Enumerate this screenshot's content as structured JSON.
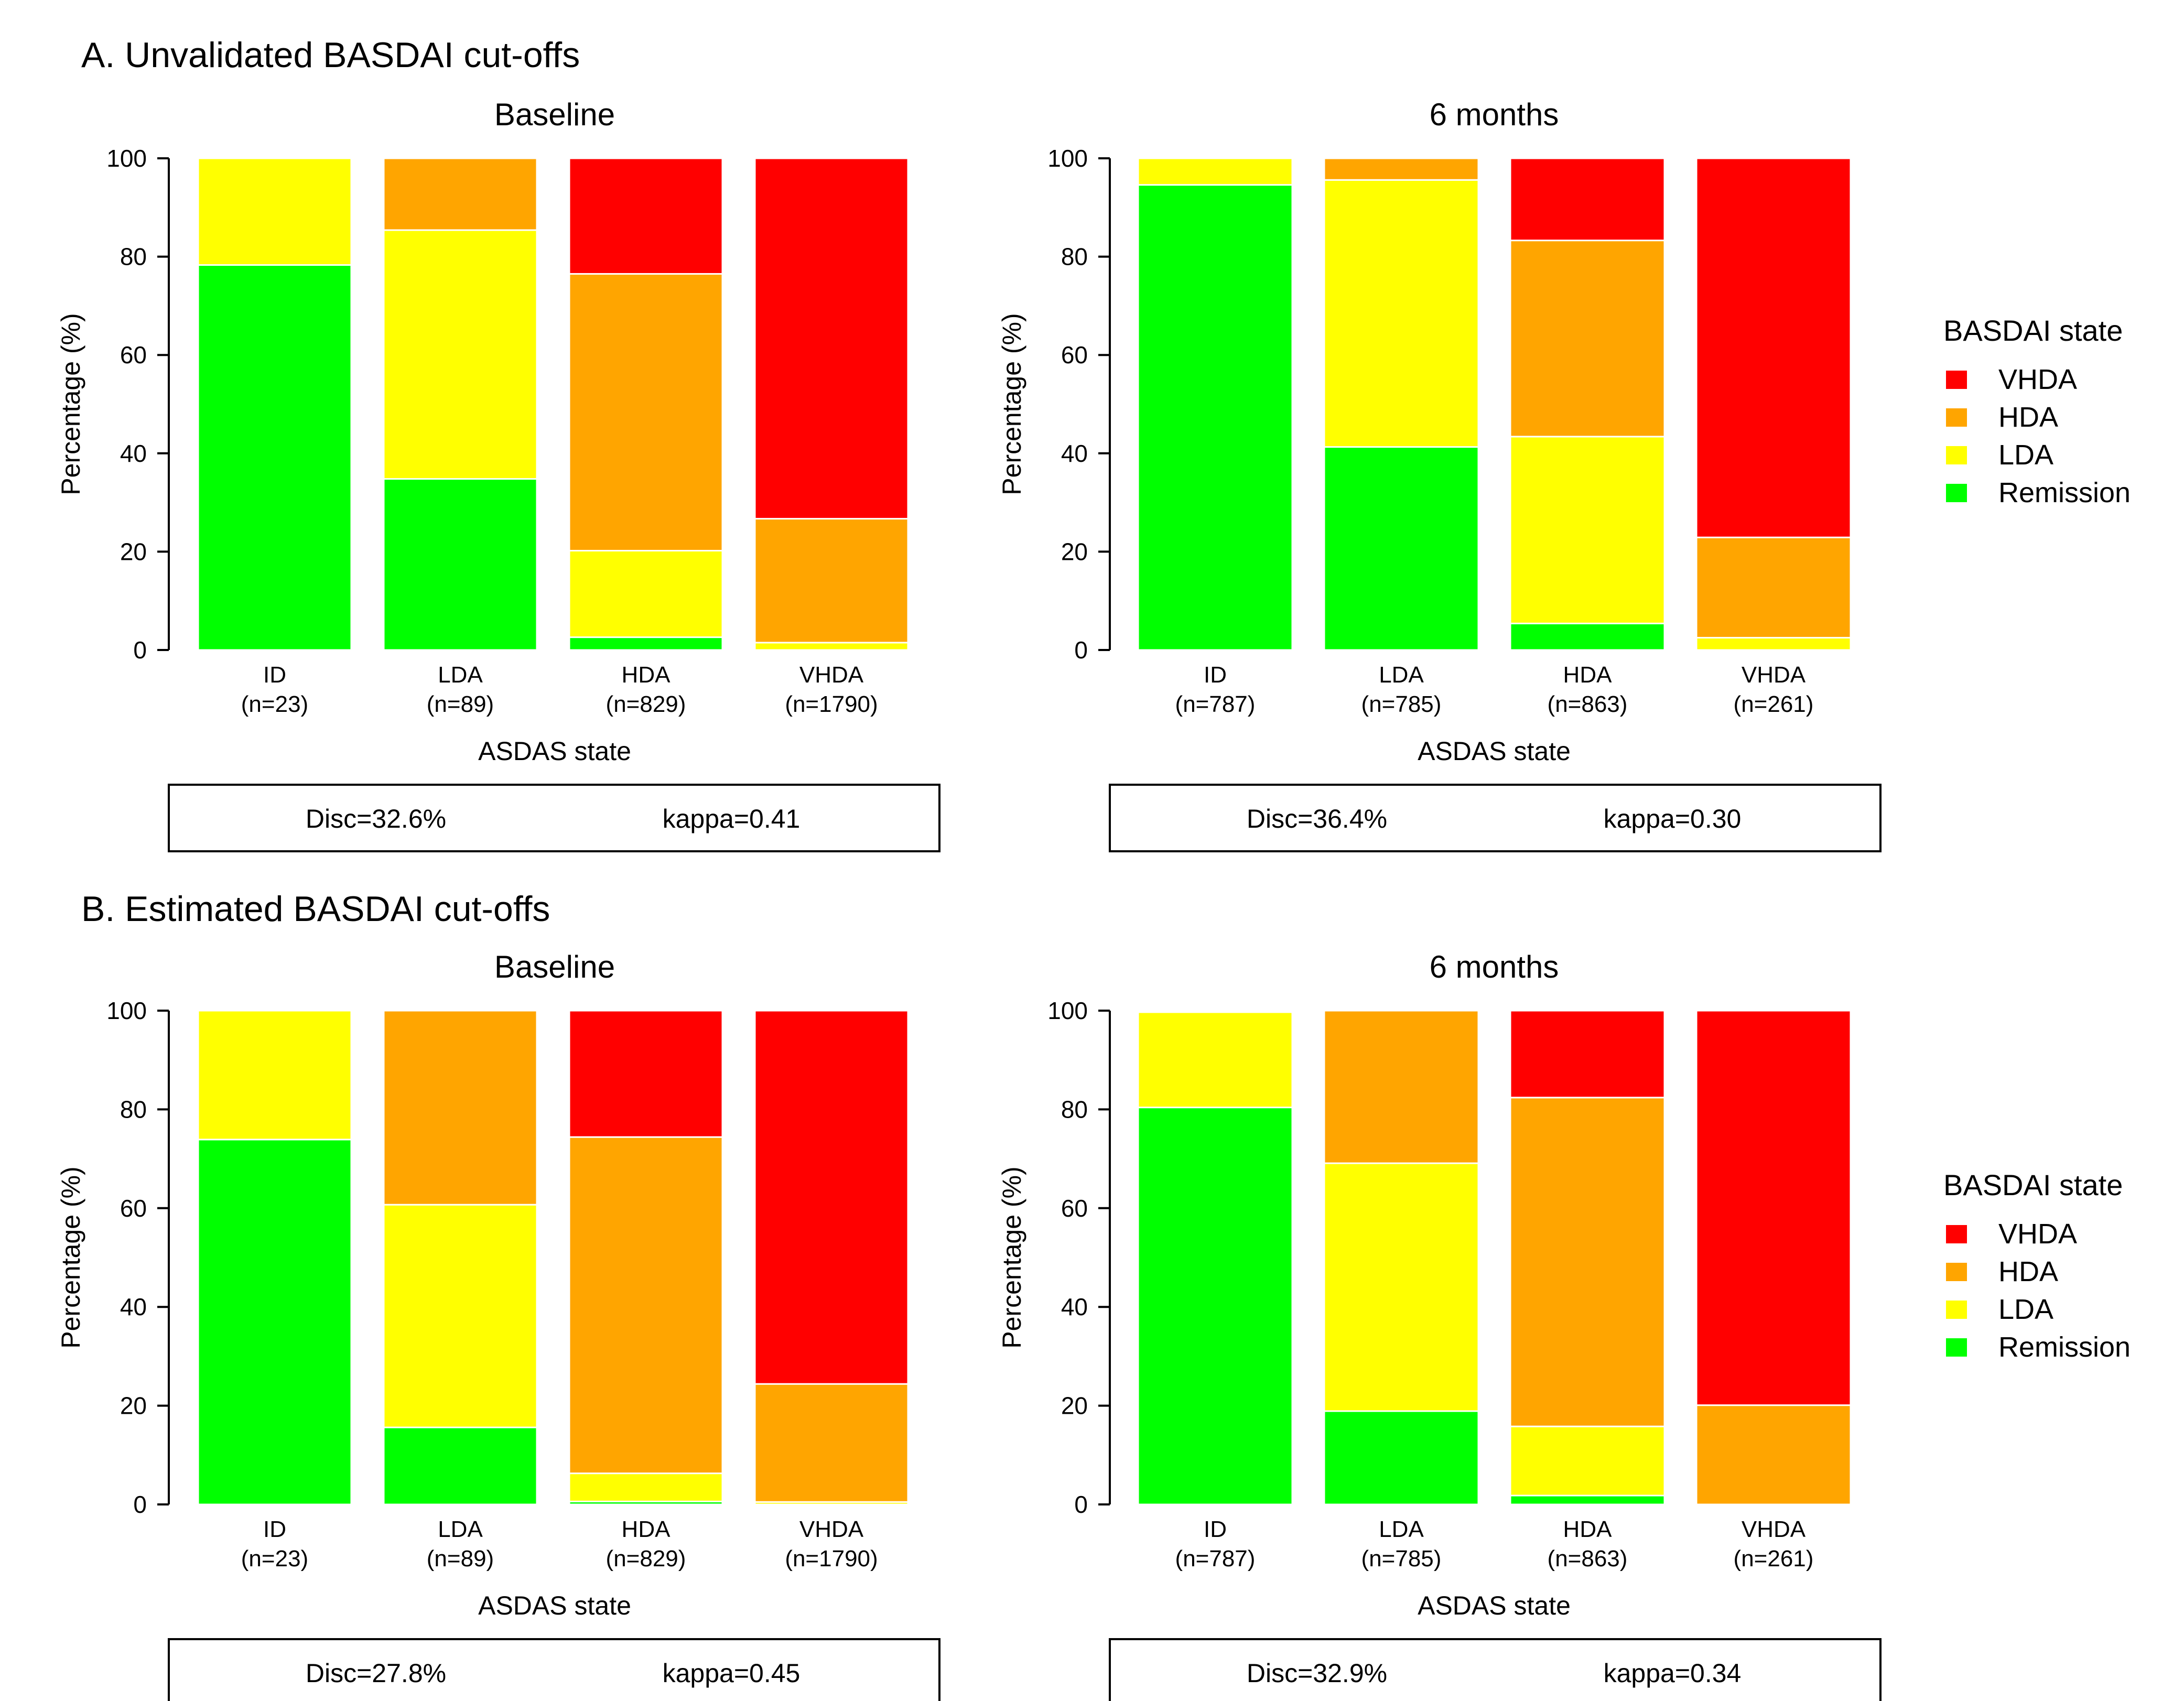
{
  "colors": {
    "VHDA": "#FF0000",
    "HDA": "#FFA500",
    "LDA": "#FFFF00",
    "Remission": "#00FF00"
  },
  "sections": [
    {
      "title": "A. Unvalidated BASDAI cut-offs"
    },
    {
      "title": "B. Estimated BASDAI cut-offs"
    }
  ],
  "legend": {
    "title": "BASDAI state",
    "items": [
      "VHDA",
      "HDA",
      "LDA",
      "Remission"
    ]
  },
  "chart_data": [
    {
      "type": "bar",
      "stacked": true,
      "section": "A",
      "title": "Baseline",
      "xlabel": "ASDAS state",
      "ylabel": "Percentage (%)",
      "ylim": [
        0,
        100
      ],
      "yticks": [
        "0",
        "20",
        "40",
        "60",
        "80",
        "100"
      ],
      "categories": [
        "ID",
        "LDA",
        "HDA",
        "VHDA"
      ],
      "category_n": [
        "(n=23)",
        "(n=89)",
        "(n=829)",
        "(n=1790)"
      ],
      "series": [
        {
          "name": "Remission",
          "values": [
            78.3,
            34.8,
            2.6,
            0.0
          ]
        },
        {
          "name": "LDA",
          "values": [
            21.7,
            50.6,
            17.6,
            1.5
          ]
        },
        {
          "name": "HDA",
          "values": [
            0.0,
            14.6,
            56.3,
            25.2
          ]
        },
        {
          "name": "VHDA",
          "values": [
            0.0,
            0.0,
            23.5,
            73.3
          ]
        }
      ],
      "stats": {
        "disc": "Disc=32.6%",
        "kappa": "kappa=0.41"
      },
      "legend": "right"
    },
    {
      "type": "bar",
      "stacked": true,
      "section": "A",
      "title": "6 months",
      "xlabel": "ASDAS state",
      "ylabel": "Percentage (%)",
      "ylim": [
        0,
        100
      ],
      "yticks": [
        "0",
        "20",
        "40",
        "60",
        "80",
        "100"
      ],
      "categories": [
        "ID",
        "LDA",
        "HDA",
        "VHDA"
      ],
      "category_n": [
        "(n=787)",
        "(n=785)",
        "(n=863)",
        "(n=261)"
      ],
      "series": [
        {
          "name": "Remission",
          "values": [
            94.6,
            41.3,
            5.4,
            0.0
          ]
        },
        {
          "name": "LDA",
          "values": [
            5.4,
            54.3,
            38.0,
            2.5
          ]
        },
        {
          "name": "HDA",
          "values": [
            0.0,
            4.4,
            39.9,
            20.4
          ]
        },
        {
          "name": "VHDA",
          "values": [
            0.0,
            0.0,
            16.7,
            77.1
          ]
        }
      ],
      "stats": {
        "disc": "Disc=36.4%",
        "kappa": "kappa=0.30"
      },
      "legend": "right"
    },
    {
      "type": "bar",
      "stacked": true,
      "section": "B",
      "title": "Baseline",
      "xlabel": "ASDAS state",
      "ylabel": "Percentage (%)",
      "ylim": [
        0,
        100
      ],
      "yticks": [
        "0",
        "20",
        "40",
        "60",
        "80",
        "100"
      ],
      "categories": [
        "ID",
        "LDA",
        "HDA",
        "VHDA"
      ],
      "category_n": [
        "(n=23)",
        "(n=89)",
        "(n=829)",
        "(n=1790)"
      ],
      "series": [
        {
          "name": "Remission",
          "values": [
            73.9,
            15.6,
            0.6,
            0.0
          ]
        },
        {
          "name": "LDA",
          "values": [
            26.1,
            45.1,
            5.7,
            0.5
          ]
        },
        {
          "name": "HDA",
          "values": [
            0.0,
            39.3,
            68.1,
            23.9
          ]
        },
        {
          "name": "VHDA",
          "values": [
            0.0,
            0.0,
            25.6,
            75.6
          ]
        }
      ],
      "stats": {
        "disc": "Disc=27.8%",
        "kappa": "kappa=0.45"
      },
      "legend": "right"
    },
    {
      "type": "bar",
      "stacked": true,
      "section": "B",
      "title": "6 months",
      "xlabel": "ASDAS state",
      "ylabel": "Percentage (%)",
      "ylim": [
        0,
        100
      ],
      "yticks": [
        "0",
        "20",
        "40",
        "60",
        "80",
        "100"
      ],
      "categories": [
        "ID",
        "LDA",
        "HDA",
        "VHDA"
      ],
      "category_n": [
        "(n=787)",
        "(n=785)",
        "(n=863)",
        "(n=261)"
      ],
      "series": [
        {
          "name": "Remission",
          "values": [
            80.4,
            18.9,
            1.8,
            0.0
          ]
        },
        {
          "name": "LDA",
          "values": [
            19.3,
            50.2,
            14.0,
            0.0
          ]
        },
        {
          "name": "HDA",
          "values": [
            0.3,
            30.9,
            66.6,
            20.1
          ]
        },
        {
          "name": "VHDA",
          "values": [
            0.0,
            0.0,
            17.6,
            79.9
          ]
        }
      ],
      "stats": {
        "disc": "Disc=32.9%",
        "kappa": "kappa=0.34"
      },
      "legend": "right"
    }
  ]
}
